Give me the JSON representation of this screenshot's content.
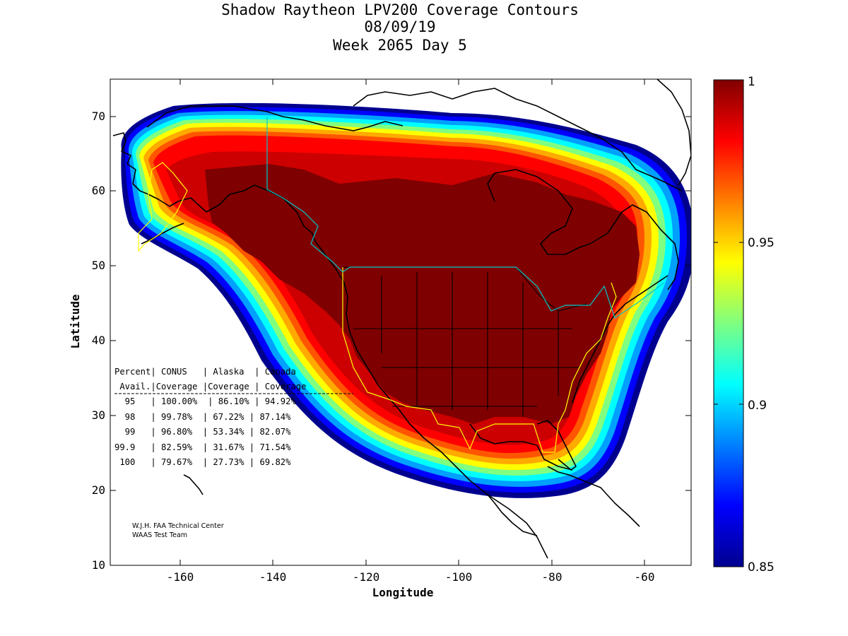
{
  "title": {
    "line1": "Shadow Raytheon LPV200 Coverage Contours",
    "line2": "08/09/19",
    "line3": "Week 2065 Day 5"
  },
  "axes": {
    "xlabel": "Longitude",
    "ylabel": "Latitude",
    "xticks": [
      -160,
      -140,
      -120,
      -100,
      -80,
      -60
    ],
    "yticks": [
      10,
      20,
      30,
      40,
      50,
      60,
      70
    ],
    "xlim": [
      -175,
      -50
    ],
    "ylim": [
      10,
      75
    ]
  },
  "colorbar": {
    "ticks": [
      "1",
      "0.95",
      "0.9",
      "0.85"
    ],
    "range": [
      0.85,
      1.0
    ],
    "colormap": "jet"
  },
  "table": {
    "header1": "Percent| CONUS   | Alaska  | Canada",
    "header2": " Avail.|Coverage |Coverage | Coverage",
    "rows": [
      {
        "percent": "95",
        "conus": "100.00%",
        "alaska": "86.10%",
        "canada": "94.92%"
      },
      {
        "percent": "98",
        "conus": "99.78%",
        "alaska": "67.22%",
        "canada": "87.14%"
      },
      {
        "percent": "99",
        "conus": "96.80%",
        "alaska": "53.34%",
        "canada": "82.07%"
      },
      {
        "percent": "99.9",
        "conus": "82.59%",
        "alaska": "31.67%",
        "canada": "71.54%"
      },
      {
        "percent": "100",
        "conus": "79.67%",
        "alaska": "27.73%",
        "canada": "69.82%"
      }
    ],
    "lines": [
      "  95   | 100.00%  | 86.10% | 94.92%",
      "  98   | 99.78%  | 67.22% | 87.14%",
      "  99   | 96.80%  | 53.34% | 82.07%",
      "99.9   | 82.59%  | 31.67% | 71.54%",
      " 100   | 79.67%  | 27.73% | 69.82%"
    ]
  },
  "credits": {
    "line1": "W.J.H. FAA Technical Center",
    "line2": "WAAS Test Team"
  },
  "colors": {
    "core": "#7f0000",
    "border_service_area": "#ffff00",
    "border_canada": "#00c8c8",
    "coastline": "#000000"
  }
}
